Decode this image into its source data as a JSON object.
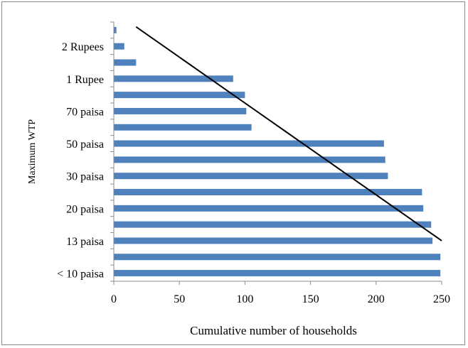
{
  "chart_data": {
    "type": "bar",
    "orientation": "horizontal",
    "title": "",
    "xlabel": "Cumulative number of households",
    "ylabel": "Maximum WTP",
    "xlim": [
      0,
      250
    ],
    "x_ticks": [
      "0",
      "50",
      "100",
      "150",
      "200",
      "250"
    ],
    "categories": [
      "< 10 paisa",
      "",
      "13 paisa",
      "",
      "20 paisa",
      "",
      "30 paisa",
      "",
      "50 paisa",
      "",
      "70 paisa",
      "",
      "1 Rupee",
      "",
      "2 Rupees",
      ""
    ],
    "values": [
      249,
      249,
      243,
      242,
      236,
      235,
      209,
      207,
      206,
      105,
      101,
      100,
      91,
      17,
      8,
      2
    ],
    "bar_color": "#4f81bd",
    "trend_line": {
      "x": [
        17,
        250
      ],
      "y_category_index": [
        15.7,
        2.5
      ]
    },
    "grid": false,
    "legend": "none"
  }
}
